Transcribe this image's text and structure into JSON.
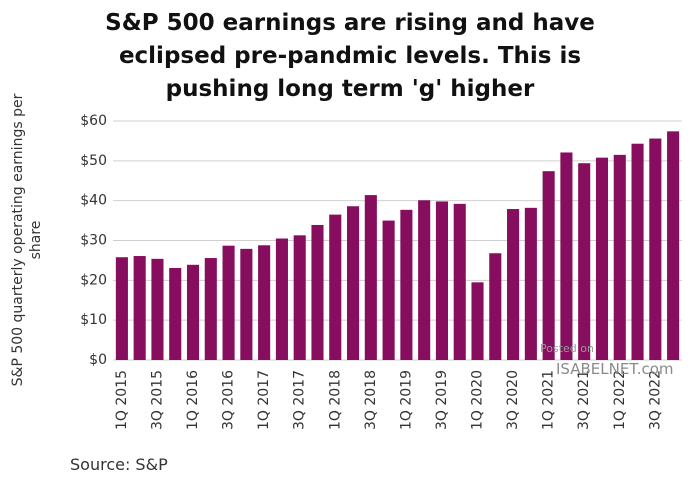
{
  "chart_data": {
    "type": "bar",
    "title": [
      "S&P 500 earnings are rising and have",
      "eclipsed pre-pandmic levels.  This is",
      "pushing long term 'g' higher"
    ],
    "y_label": [
      "S&P 500 quarterly operating earnings per",
      "share"
    ],
    "source": "Source: S&P",
    "watermark": [
      "Posted on",
      "ISABELNET.com"
    ],
    "categories": [
      "1Q 2015",
      null,
      "3Q 2015",
      null,
      "1Q 2016",
      null,
      "3Q 2016",
      null,
      "1Q 2017",
      null,
      "3Q 2017",
      null,
      "1Q 2018",
      null,
      "3Q 2018",
      null,
      "1Q 2019",
      null,
      "3Q 2019",
      null,
      "1Q 2020",
      null,
      "3Q 2020",
      null,
      "1Q 2021",
      null,
      "3Q 2021",
      null,
      "1Q 2022",
      null,
      "3Q 2022",
      null
    ],
    "values": [
      25.8,
      26.1,
      25.4,
      23.1,
      23.9,
      25.6,
      28.7,
      27.9,
      28.8,
      30.5,
      31.3,
      33.9,
      36.5,
      38.6,
      41.4,
      35.0,
      37.7,
      40.1,
      39.8,
      39.2,
      19.5,
      26.8,
      37.9,
      38.2,
      47.4,
      52.1,
      49.4,
      50.8,
      51.5,
      54.3,
      55.6,
      57.4
    ],
    "color": "#870d5e",
    "ylim": [
      0,
      60
    ],
    "yticks": [
      {
        "value": 0,
        "label": "$0"
      },
      {
        "value": 10,
        "label": "$10"
      },
      {
        "value": 20,
        "label": "$20"
      },
      {
        "value": 30,
        "label": "$30"
      },
      {
        "value": 40,
        "label": "$40"
      },
      {
        "value": 50,
        "label": "$50"
      },
      {
        "value": 60,
        "label": "$60"
      }
    ],
    "grid": true
  }
}
